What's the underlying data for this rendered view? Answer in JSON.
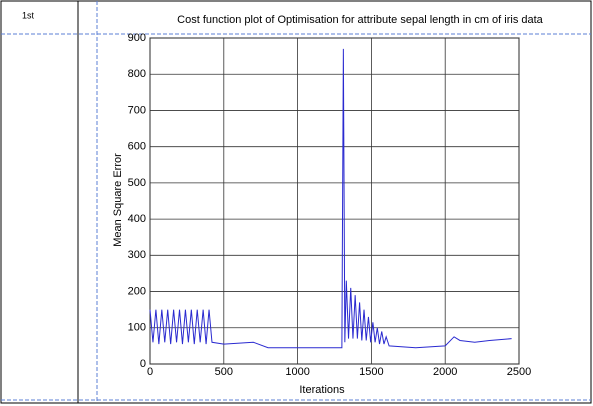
{
  "table": {
    "rows": [
      {
        "label": "1st"
      }
    ]
  },
  "chart_data": {
    "type": "line",
    "title": "Cost function plot of Optimisation for attribute sepal length in cm of iris data",
    "x_label": "Iterations",
    "y_label": "Mean Square Error",
    "xlim": [
      0,
      2500
    ],
    "ylim": [
      0,
      900
    ],
    "xticks": [
      0,
      500,
      1000,
      1500,
      2000,
      2500
    ],
    "yticks": [
      0,
      100,
      200,
      300,
      400,
      500,
      600,
      700,
      800,
      900
    ],
    "grid": true,
    "series": [
      {
        "color": "#2a2ad0",
        "x": [
          0,
          20,
          40,
          60,
          80,
          100,
          120,
          140,
          160,
          180,
          200,
          220,
          240,
          260,
          280,
          300,
          320,
          340,
          360,
          380,
          400,
          420,
          500,
          700,
          800,
          1000,
          1200,
          1300,
          1310,
          1320,
          1330,
          1345,
          1360,
          1375,
          1390,
          1405,
          1420,
          1435,
          1450,
          1465,
          1480,
          1495,
          1510,
          1525,
          1540,
          1555,
          1570,
          1585,
          1600,
          1620,
          1800,
          2000,
          2060,
          2100,
          2200,
          2300,
          2450
        ],
        "values": [
          150,
          60,
          150,
          55,
          150,
          60,
          150,
          55,
          150,
          60,
          150,
          55,
          150,
          60,
          150,
          55,
          150,
          60,
          150,
          55,
          150,
          60,
          55,
          60,
          45,
          45,
          45,
          45,
          870,
          60,
          230,
          70,
          210,
          70,
          190,
          70,
          170,
          65,
          150,
          65,
          130,
          60,
          115,
          60,
          100,
          55,
          90,
          55,
          75,
          50,
          45,
          50,
          75,
          65,
          60,
          65,
          70
        ]
      }
    ]
  }
}
